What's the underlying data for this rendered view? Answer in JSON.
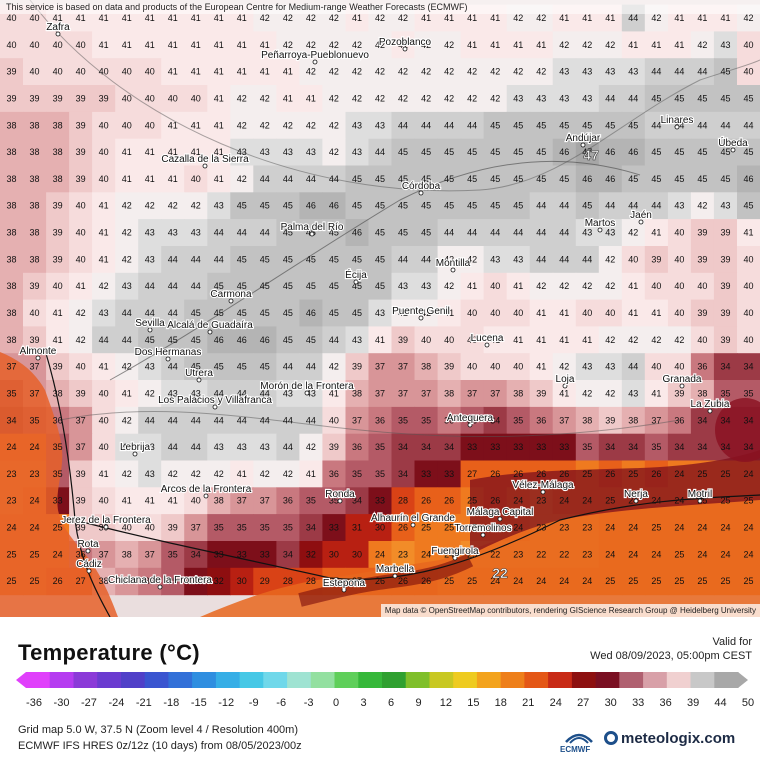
{
  "attribution_top": "This service is based on data and products of the European Centre for Medium-range Weather Forecasts (ECMWF)",
  "attribution_map": "Map data © OpenStreetMap contributors, rendering GIScience Research Group @ Heidelberg University",
  "title": "Temperature (°C)",
  "valid_label": "Valid for",
  "valid_time": "Wed 08/09/2023, 05:00pm CEST",
  "colorbar_ticks": [
    "-36",
    "-30",
    "-27",
    "-24",
    "-21",
    "-18",
    "-15",
    "-12",
    "-9",
    "-6",
    "-3",
    "0",
    "3",
    "6",
    "9",
    "12",
    "15",
    "18",
    "21",
    "24",
    "27",
    "30",
    "33",
    "36",
    "39",
    "44",
    "50"
  ],
  "colorbar_colors": [
    "#e040fb",
    "#b53cf0",
    "#8b3ad8",
    "#6b3bd0",
    "#5040c8",
    "#3a55d0",
    "#3270d8",
    "#2f8ee0",
    "#36aee6",
    "#46c8e6",
    "#70d8ea",
    "#9fe3d2",
    "#93e0a0",
    "#5fcf5a",
    "#36b83a",
    "#2fa030",
    "#7fbf2a",
    "#c8c822",
    "#eecb20",
    "#f3a31d",
    "#ee7f1a",
    "#e45716",
    "#c82a16",
    "#8d1010",
    "#7a0f22",
    "#b06070",
    "#d8a0a8",
    "#f0d0d0",
    "#c8c8c8",
    "#a8a8a8"
  ],
  "grid_info": "Grid map 5.0 W, 37.5 N (Zoom level 4 / Resolution 400m)",
  "model_info": "ECMWF IFS HRES 0z/12z (10 days) from 08/05/2023/00z",
  "ecmwf_label": "ECMWF",
  "brand": "meteologix.com",
  "cities": [
    {
      "name": "Zafra"
    },
    {
      "name": "Pozoblanco"
    },
    {
      "name": "Peñarroya-Pueblonuevo"
    },
    {
      "name": "Cazalla de la Sierra"
    },
    {
      "name": "Córdoba"
    },
    {
      "name": "Andújar"
    },
    {
      "name": "Linares"
    },
    {
      "name": "Úbeda"
    },
    {
      "name": "Martos"
    },
    {
      "name": "Jaén"
    },
    {
      "name": "Palma del Río"
    },
    {
      "name": "Écija"
    },
    {
      "name": "Montilla"
    },
    {
      "name": "Carmona"
    },
    {
      "name": "Sevilla"
    },
    {
      "name": "Alcalá de Guadaíra"
    },
    {
      "name": "Puente Genil"
    },
    {
      "name": "Lucena"
    },
    {
      "name": "Almonte"
    },
    {
      "name": "Dos Hermanas"
    },
    {
      "name": "Utrera"
    },
    {
      "name": "Los Palacios y Villafranca"
    },
    {
      "name": "Morón de la Frontera"
    },
    {
      "name": "Loja"
    },
    {
      "name": "Granada"
    },
    {
      "name": "La Zubia"
    },
    {
      "name": "Antequera"
    },
    {
      "name": "Lebrija"
    },
    {
      "name": "Arcos de la Frontera"
    },
    {
      "name": "Ronda"
    },
    {
      "name": "Vélez-Málaga"
    },
    {
      "name": "Nerja"
    },
    {
      "name": "Motril"
    },
    {
      "name": "Jerez de la Frontera"
    },
    {
      "name": "Alhaurín el Grande"
    },
    {
      "name": "Málaga Capital"
    },
    {
      "name": "Torremolinos"
    },
    {
      "name": "Fuengirola"
    },
    {
      "name": "Rota"
    },
    {
      "name": "Cádiz"
    },
    {
      "name": "Chiclana de la Frontera"
    },
    {
      "name": "Marbella"
    },
    {
      "name": "Estepona"
    }
  ],
  "highlights": [
    {
      "value": "47"
    },
    {
      "value": "22"
    }
  ],
  "temperature_grid": [
    [
      40,
      40,
      41,
      41,
      41,
      41,
      41,
      41,
      41,
      41,
      41,
      42,
      42,
      42,
      42,
      41,
      42,
      42,
      41,
      41,
      41,
      41,
      42,
      42,
      41,
      41,
      41,
      44,
      42,
      41,
      41,
      41,
      42
    ],
    [
      40,
      40,
      40,
      40,
      41,
      41,
      41,
      41,
      41,
      41,
      41,
      41,
      42,
      42,
      42,
      42,
      42,
      41,
      42,
      42,
      41,
      41,
      41,
      41,
      42,
      42,
      42,
      41,
      41,
      41,
      42,
      43,
      40
    ],
    [
      39,
      40,
      40,
      40,
      40,
      40,
      40,
      41,
      41,
      41,
      41,
      41,
      41,
      42,
      42,
      42,
      42,
      42,
      42,
      42,
      42,
      42,
      42,
      42,
      43,
      43,
      43,
      43,
      44,
      44,
      44,
      45,
      40
    ],
    [
      39,
      39,
      39,
      39,
      39,
      40,
      40,
      40,
      40,
      41,
      42,
      42,
      41,
      41,
      42,
      42,
      42,
      42,
      42,
      42,
      42,
      42,
      43,
      43,
      43,
      43,
      44,
      44,
      45,
      45,
      45,
      45,
      45
    ],
    [
      38,
      38,
      38,
      39,
      40,
      40,
      40,
      41,
      41,
      41,
      42,
      42,
      42,
      42,
      42,
      43,
      43,
      44,
      44,
      44,
      44,
      45,
      45,
      45,
      45,
      45,
      45,
      45,
      44,
      44,
      44,
      44,
      44
    ],
    [
      38,
      38,
      38,
      39,
      40,
      41,
      41,
      41,
      41,
      41,
      43,
      43,
      43,
      43,
      42,
      43,
      44,
      45,
      45,
      45,
      45,
      45,
      45,
      45,
      46,
      47,
      46,
      46,
      45,
      45,
      45,
      45,
      45
    ],
    [
      38,
      38,
      38,
      39,
      40,
      41,
      41,
      41,
      40,
      41,
      42,
      44,
      44,
      44,
      44,
      45,
      45,
      45,
      45,
      45,
      45,
      45,
      45,
      45,
      45,
      46,
      46,
      45,
      45,
      45,
      45,
      45,
      46
    ],
    [
      38,
      38,
      39,
      40,
      41,
      42,
      42,
      42,
      42,
      43,
      45,
      45,
      45,
      46,
      46,
      45,
      45,
      45,
      45,
      45,
      45,
      45,
      45,
      44,
      44,
      45,
      44,
      44,
      44,
      43,
      42,
      43,
      45
    ],
    [
      38,
      38,
      39,
      40,
      41,
      42,
      43,
      43,
      43,
      44,
      44,
      44,
      45,
      45,
      45,
      46,
      45,
      45,
      45,
      44,
      44,
      44,
      44,
      44,
      44,
      43,
      43,
      42,
      41,
      40,
      39,
      39,
      41
    ],
    [
      38,
      38,
      39,
      40,
      41,
      42,
      43,
      44,
      44,
      44,
      45,
      45,
      45,
      45,
      45,
      45,
      45,
      44,
      44,
      42,
      42,
      43,
      43,
      44,
      44,
      44,
      42,
      40,
      39,
      40,
      39,
      39,
      40
    ],
    [
      38,
      39,
      40,
      41,
      42,
      43,
      44,
      44,
      44,
      45,
      45,
      45,
      45,
      45,
      45,
      45,
      45,
      43,
      43,
      42,
      41,
      40,
      41,
      42,
      42,
      42,
      42,
      41,
      40,
      40,
      40,
      39,
      40
    ],
    [
      38,
      40,
      41,
      42,
      43,
      44,
      44,
      44,
      45,
      45,
      45,
      45,
      45,
      46,
      45,
      45,
      43,
      42,
      42,
      41,
      40,
      40,
      40,
      41,
      41,
      40,
      40,
      41,
      41,
      40,
      39,
      39,
      40
    ],
    [
      38,
      39,
      41,
      42,
      44,
      44,
      45,
      45,
      45,
      46,
      46,
      46,
      45,
      45,
      44,
      43,
      41,
      39,
      40,
      40,
      40,
      41,
      41,
      41,
      41,
      41,
      42,
      42,
      42,
      42,
      40,
      39,
      40
    ],
    [
      37,
      37,
      39,
      40,
      41,
      42,
      43,
      44,
      45,
      45,
      45,
      45,
      44,
      44,
      42,
      39,
      37,
      37,
      38,
      39,
      40,
      40,
      40,
      41,
      42,
      43,
      43,
      44,
      40,
      40,
      36,
      34,
      34
    ],
    [
      35,
      37,
      38,
      39,
      40,
      41,
      42,
      43,
      43,
      44,
      44,
      44,
      43,
      43,
      41,
      38,
      37,
      37,
      37,
      38,
      37,
      37,
      38,
      39,
      41,
      42,
      42,
      43,
      41,
      39,
      38,
      35,
      35
    ],
    [
      34,
      35,
      36,
      37,
      40,
      42,
      44,
      44,
      44,
      44,
      44,
      44,
      44,
      44,
      40,
      37,
      36,
      35,
      35,
      36,
      35,
      34,
      35,
      36,
      37,
      38,
      39,
      38,
      37,
      36,
      34,
      34,
      34
    ],
    [
      24,
      24,
      35,
      37,
      40,
      43,
      43,
      44,
      44,
      43,
      43,
      43,
      44,
      42,
      39,
      36,
      35,
      34,
      34,
      34,
      33,
      33,
      33,
      33,
      33,
      35,
      34,
      34,
      35,
      34,
      34,
      34,
      34
    ],
    [
      23,
      23,
      35,
      39,
      41,
      42,
      43,
      42,
      42,
      42,
      41,
      42,
      42,
      41,
      36,
      35,
      35,
      34,
      33,
      33,
      27,
      26,
      26,
      26,
      26,
      25,
      26,
      25,
      26,
      24,
      25,
      25,
      24
    ],
    [
      23,
      24,
      33,
      39,
      40,
      41,
      41,
      41,
      40,
      38,
      37,
      37,
      36,
      35,
      35,
      34,
      33,
      28,
      26,
      26,
      25,
      26,
      24,
      23,
      24,
      24,
      25,
      24,
      24,
      24,
      25,
      25,
      25
    ],
    [
      24,
      24,
      25,
      39,
      39,
      40,
      40,
      39,
      37,
      35,
      35,
      35,
      35,
      34,
      33,
      31,
      30,
      26,
      25,
      25,
      25,
      25,
      24,
      23,
      23,
      23,
      24,
      24,
      25,
      24,
      24,
      24,
      24
    ],
    [
      25,
      25,
      24,
      36,
      37,
      38,
      37,
      35,
      34,
      33,
      33,
      33,
      34,
      32,
      30,
      30,
      24,
      23,
      24,
      24,
      23,
      22,
      23,
      22,
      22,
      23,
      24,
      24,
      24,
      25,
      24,
      24,
      24
    ],
    [
      25,
      25,
      26,
      27,
      38,
      37,
      36,
      35,
      33,
      32,
      30,
      29,
      28,
      28,
      27,
      27,
      26,
      26,
      26,
      25,
      25,
      24,
      24,
      24,
      24,
      24,
      25,
      25,
      25,
      25,
      25,
      25,
      25
    ]
  ]
}
